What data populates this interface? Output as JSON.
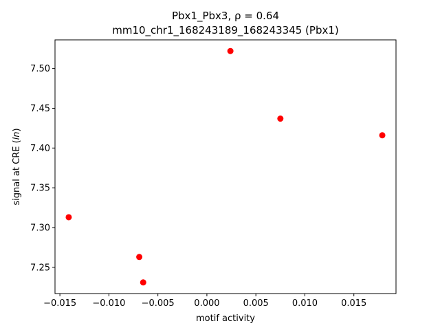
{
  "chart_data": {
    "type": "scatter",
    "title_line1": "Pbx1_Pbx3, ρ = 0.64",
    "title_line2": "mm10_chr1_168243189_168243345 (Pbx1)",
    "xlabel": "motif activity",
    "ylabel_prefix": "signal at CRE (",
    "ylabel_italic": "ln",
    "ylabel_suffix": ")",
    "xlim": [
      -0.0155,
      0.0193
    ],
    "ylim": [
      7.217,
      7.536
    ],
    "xticks": [
      -0.015,
      -0.01,
      -0.005,
      0.0,
      0.005,
      0.01,
      0.015
    ],
    "xtick_labels": [
      "−0.015",
      "−0.010",
      "−0.005",
      "0.000",
      "0.005",
      "0.010",
      "0.015"
    ],
    "yticks": [
      7.25,
      7.3,
      7.35,
      7.4,
      7.45,
      7.5
    ],
    "ytick_labels": [
      "7.25",
      "7.30",
      "7.35",
      "7.40",
      "7.45",
      "7.50"
    ],
    "marker_color": "#ff0000",
    "grid": false,
    "series": [
      {
        "points": [
          {
            "x": 0.0024,
            "y": 7.522
          },
          {
            "x": 0.0075,
            "y": 7.437
          },
          {
            "x": 0.0179,
            "y": 7.416
          },
          {
            "x": -0.0141,
            "y": 7.313
          },
          {
            "x": -0.0069,
            "y": 7.263
          },
          {
            "x": -0.0065,
            "y": 7.231
          }
        ]
      }
    ]
  }
}
